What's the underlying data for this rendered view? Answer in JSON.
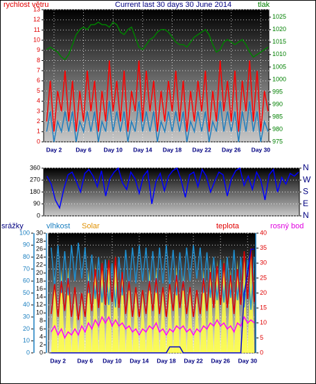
{
  "chart_data": [
    {
      "type": "line",
      "title": "Current last 30 days 30 June 2014",
      "ylabel": "rychlost větru",
      "y2label": "tlak",
      "x": [
        1,
        1.5,
        2,
        2.5,
        3,
        3.5,
        4,
        4.5,
        5,
        5.5,
        6,
        6.5,
        7,
        7.5,
        8,
        8.5,
        9,
        9.5,
        10,
        10.5,
        11,
        11.5,
        12,
        12.5,
        13,
        13.5,
        14,
        14.5,
        15,
        15.5,
        16,
        16.5,
        17,
        17.5,
        18,
        18.5,
        19,
        19.5,
        20,
        20.5,
        21,
        21.5,
        22,
        22.5,
        23,
        23.5,
        24,
        24.5,
        25,
        25.5,
        26,
        26.5,
        27,
        27.5,
        28,
        28.5,
        29,
        29.5,
        30,
        30.5,
        31
      ],
      "xlim": [
        0.6,
        31.1
      ],
      "xticks": [
        {
          "value": 2,
          "label": "Day 2"
        },
        {
          "value": 6,
          "label": "Day 6"
        },
        {
          "value": 10,
          "label": "Day 10"
        },
        {
          "value": 14,
          "label": "Day 14"
        },
        {
          "value": 18,
          "label": "Day 18"
        },
        {
          "value": 22,
          "label": "Day 22"
        },
        {
          "value": 26,
          "label": "Day 26"
        },
        {
          "value": 30,
          "label": "Day 30"
        }
      ],
      "ylim": [
        0,
        13
      ],
      "yticks": [
        0,
        1,
        2,
        3,
        4,
        5,
        6,
        7,
        8,
        9,
        10,
        11,
        12,
        13
      ],
      "y2lim": [
        975,
        1028
      ],
      "y2ticks": [
        975,
        980,
        985,
        990,
        995,
        1000,
        1005,
        1010,
        1015,
        1020,
        1025
      ],
      "grid": true,
      "series": [
        {
          "color": "#ff0000",
          "values": [
            2,
            6,
            1,
            5,
            3,
            7,
            2,
            6,
            1,
            5,
            2,
            7,
            3,
            6,
            1,
            5,
            2,
            8,
            3,
            6,
            2,
            7,
            1,
            5,
            3,
            8,
            2,
            7,
            3,
            6,
            1,
            5,
            2,
            6,
            3,
            7,
            2,
            6,
            1,
            5,
            2,
            6,
            3,
            7,
            1,
            5,
            2,
            8,
            3,
            6,
            2,
            7,
            1,
            6,
            3,
            8,
            2,
            7,
            1,
            5,
            3
          ]
        },
        {
          "color": "#1e7fc0",
          "values": [
            1,
            3,
            0,
            2,
            1,
            3,
            1,
            3,
            0,
            2,
            1,
            3,
            1,
            3,
            0,
            2,
            1,
            4,
            1,
            3,
            1,
            3,
            0,
            2,
            1,
            4,
            1,
            3,
            1,
            3,
            0,
            2,
            1,
            3,
            1,
            3,
            1,
            3,
            0,
            2,
            1,
            3,
            1,
            3,
            0,
            2,
            1,
            4,
            1,
            3,
            1,
            3,
            0,
            3,
            1,
            4,
            1,
            3,
            0,
            2,
            1
          ]
        },
        {
          "color": "#008000",
          "axis": "y2",
          "values": [
            1012,
            1013,
            1012,
            1011,
            1009,
            1008,
            1010,
            1014,
            1018,
            1020,
            1021,
            1020,
            1022,
            1022,
            1023,
            1022,
            1022,
            1021,
            1023,
            1022,
            1019,
            1018,
            1020,
            1021,
            1017,
            1013,
            1012,
            1014,
            1016,
            1017,
            1019,
            1020,
            1020,
            1019,
            1017,
            1015,
            1014,
            1014,
            1013,
            1015,
            1017,
            1018,
            1019,
            1020,
            1018,
            1014,
            1011,
            1012,
            1015,
            1016,
            1015,
            1014,
            1015,
            1016,
            1014,
            1011,
            1009,
            1010,
            1011,
            1012,
            1013
          ]
        }
      ]
    },
    {
      "type": "line",
      "x": [
        1,
        1.5,
        2,
        2.5,
        3,
        3.5,
        4,
        4.5,
        5,
        5.5,
        6,
        6.5,
        7,
        7.5,
        8,
        8.5,
        9,
        9.5,
        10,
        10.5,
        11,
        11.5,
        12,
        12.5,
        13,
        13.5,
        14,
        14.5,
        15,
        15.5,
        16,
        16.5,
        17,
        17.5,
        18,
        18.5,
        19,
        19.5,
        20,
        20.5,
        21,
        21.5,
        22,
        22.5,
        23,
        23.5,
        24,
        24.5,
        25,
        25.5,
        26,
        26.5,
        27,
        27.5,
        28,
        28.5,
        29,
        29.5,
        30,
        30.5,
        31
      ],
      "xlim": [
        0.6,
        31.1
      ],
      "ylim": [
        0,
        360
      ],
      "yticks": [
        0,
        90,
        180,
        270,
        360
      ],
      "y2lim": [
        0,
        360
      ],
      "y2ticks": [
        {
          "value": 0,
          "label": "N"
        },
        {
          "value": 90,
          "label": "E"
        },
        {
          "value": 180,
          "label": "S"
        },
        {
          "value": 270,
          "label": "W"
        },
        {
          "value": 360,
          "label": "N"
        }
      ],
      "grid": true,
      "series": [
        {
          "color": "#0000ff",
          "values": [
            300,
            240,
            120,
            60,
            200,
            310,
            330,
            260,
            180,
            320,
            350,
            300,
            220,
            340,
            150,
            280,
            330,
            360,
            250,
            200,
            330,
            280,
            170,
            300,
            340,
            90,
            260,
            320,
            190,
            300,
            340,
            360,
            270,
            140,
            310,
            330,
            220,
            350,
            300,
            180,
            260,
            330,
            310,
            150,
            280,
            340,
            360,
            230,
            300,
            200,
            330,
            270,
            120,
            310,
            350,
            180,
            290,
            240,
            320,
            300,
            330
          ]
        }
      ]
    },
    {
      "type": "line",
      "x": [
        1,
        1.5,
        2,
        2.5,
        3,
        3.5,
        4,
        4.5,
        5,
        5.5,
        6,
        6.5,
        7,
        7.5,
        8,
        8.5,
        9,
        9.5,
        10,
        10.5,
        11,
        11.5,
        12,
        12.5,
        13,
        13.5,
        14,
        14.5,
        15,
        15.5,
        16,
        16.5,
        17,
        17.5,
        18,
        18.5,
        19,
        19.5,
        20,
        20.5,
        21,
        21.5,
        22,
        22.5,
        23,
        23.5,
        24,
        24.5,
        25,
        25.5,
        26,
        26.5,
        27,
        27.5,
        28,
        28.5,
        29,
        29.5,
        30,
        30.5,
        31
      ],
      "xlim": [
        0.6,
        31.1
      ],
      "xticks": [
        {
          "value": 2,
          "label": "Day 2"
        },
        {
          "value": 6,
          "label": "Day 6"
        },
        {
          "value": 10,
          "label": "Day 10"
        },
        {
          "value": 14,
          "label": "Day 14"
        },
        {
          "value": 18,
          "label": "Day 18"
        },
        {
          "value": 22,
          "label": "Day 22"
        },
        {
          "value": 26,
          "label": "Day 26"
        },
        {
          "value": 30,
          "label": "Day 30"
        }
      ],
      "ylim": [
        0,
        100
      ],
      "yticks": [
        0,
        10,
        20,
        30,
        40,
        50,
        60,
        70,
        80,
        90,
        100
      ],
      "y3lim": [
        0,
        30
      ],
      "y3ticks": [
        0,
        2,
        4,
        6,
        8,
        10,
        12,
        14,
        16,
        18,
        20,
        22,
        24,
        26,
        28,
        30
      ],
      "y2lim": [
        0,
        40
      ],
      "y2ticks": [
        0,
        5,
        10,
        15,
        20,
        25,
        30,
        35,
        40
      ],
      "grid": true,
      "series": [
        {
          "name": "Solar",
          "color": "#ffff40",
          "kind": "area",
          "axis": "y",
          "values": [
            0,
            65,
            0,
            70,
            0,
            72,
            0,
            50,
            0,
            45,
            0,
            70,
            0,
            75,
            0,
            78,
            0,
            80,
            0,
            82,
            0,
            68,
            0,
            60,
            0,
            55,
            0,
            50,
            0,
            70,
            0,
            72,
            0,
            55,
            0,
            60,
            0,
            74,
            0,
            65,
            0,
            55,
            0,
            50,
            0,
            70,
            0,
            75,
            0,
            78,
            0,
            80,
            0,
            70,
            0,
            78,
            0,
            82,
            0,
            84,
            0
          ]
        },
        {
          "name": "vlhkost",
          "color": "#1e8fd0",
          "axis": "y",
          "values": [
            88,
            55,
            90,
            50,
            85,
            48,
            90,
            60,
            92,
            62,
            88,
            50,
            82,
            45,
            80,
            42,
            78,
            40,
            75,
            38,
            80,
            48,
            86,
            52,
            88,
            58,
            90,
            60,
            88,
            52,
            85,
            50,
            88,
            58,
            90,
            55,
            86,
            48,
            84,
            52,
            88,
            60,
            90,
            62,
            88,
            50,
            84,
            46,
            80,
            44,
            78,
            42,
            80,
            46,
            86,
            44,
            80,
            38,
            78,
            36,
            80
          ]
        },
        {
          "name": "teplota",
          "color": "#e00000",
          "axis": "y2",
          "values": [
            13,
            23,
            12,
            24,
            14,
            25,
            12,
            22,
            11,
            20,
            12,
            24,
            14,
            28,
            15,
            30,
            16,
            31,
            17,
            32,
            15,
            27,
            13,
            24,
            12,
            22,
            12,
            21,
            13,
            24,
            14,
            25,
            13,
            22,
            12,
            23,
            14,
            26,
            15,
            24,
            13,
            22,
            12,
            21,
            13,
            25,
            14,
            27,
            15,
            29,
            16,
            30,
            15,
            26,
            13,
            28,
            16,
            34,
            18,
            35,
            17
          ]
        },
        {
          "name": "rosný bod",
          "color": "#ff00ff",
          "axis": "y2",
          "values": [
            7,
            9,
            6,
            8,
            5,
            7,
            6,
            8,
            6,
            9,
            7,
            10,
            8,
            11,
            9,
            12,
            10,
            12,
            9,
            11,
            9,
            10,
            8,
            9,
            7,
            8,
            6,
            8,
            7,
            9,
            8,
            10,
            7,
            8,
            6,
            8,
            7,
            9,
            8,
            9,
            7,
            8,
            6,
            8,
            7,
            9,
            8,
            10,
            9,
            11,
            9,
            10,
            8,
            9,
            7,
            10,
            9,
            12,
            10,
            11,
            10
          ]
        },
        {
          "name": "srážky",
          "color": "#0000cc",
          "axis": "y3",
          "values": [
            0,
            0,
            0,
            0,
            0,
            0,
            0,
            0,
            0,
            0,
            0,
            0,
            0,
            0,
            0,
            0,
            0,
            0,
            0,
            0,
            0,
            0,
            0,
            0,
            0,
            0,
            0,
            0,
            0,
            0,
            0,
            0,
            0,
            0,
            0,
            1.5,
            1.5,
            1.5,
            1.5,
            0,
            0,
            0,
            0,
            0,
            0,
            0,
            0,
            0,
            0,
            0,
            0,
            0,
            0,
            0,
            0,
            0,
            0,
            15,
            20,
            26,
            26
          ]
        }
      ]
    }
  ]
}
